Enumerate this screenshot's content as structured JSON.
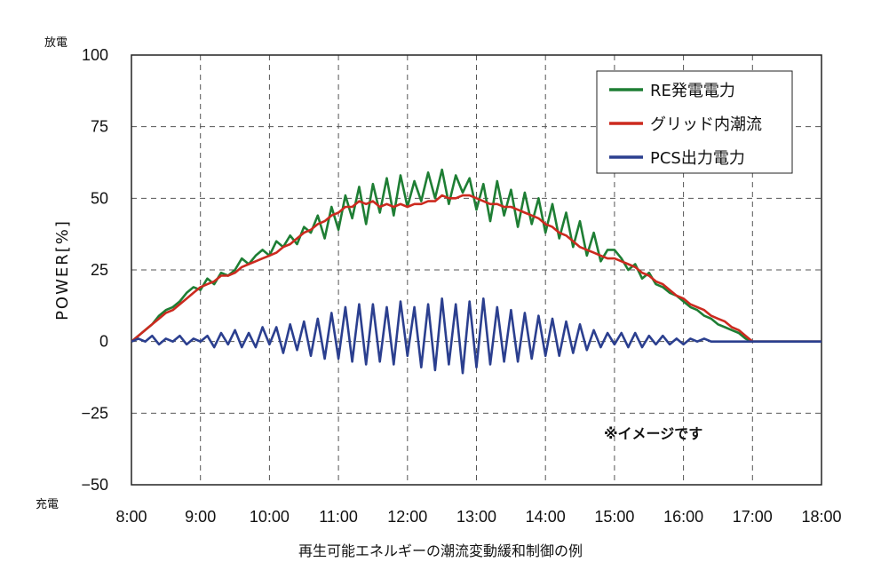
{
  "chart_data": {
    "type": "line",
    "ylabel": "POWER[%]",
    "y_top_label": "放電",
    "y_bottom_label": "充電",
    "annotation": "※イメージです",
    "caption": "再生可能エネルギーの潮流変動緩和制御の例",
    "ylim": [
      -50,
      100
    ],
    "yticks": [
      100,
      75,
      50,
      25,
      0,
      -25,
      -50
    ],
    "ytick_labels": [
      "100",
      "75",
      "50",
      "25",
      "0",
      "−25",
      "−50"
    ],
    "xlim": [
      8,
      18
    ],
    "xticks": [
      "8:00",
      "9:00",
      "10:00",
      "11:00",
      "12:00",
      "13:00",
      "14:00",
      "15:00",
      "16:00",
      "17:00",
      "18:00"
    ],
    "grid": true,
    "legend_position": "top-right",
    "x_hours": [
      8.0,
      8.1,
      8.2,
      8.3,
      8.4,
      8.5,
      8.6,
      8.7,
      8.8,
      8.9,
      9.0,
      9.1,
      9.2,
      9.3,
      9.4,
      9.5,
      9.6,
      9.7,
      9.8,
      9.9,
      10.0,
      10.1,
      10.2,
      10.3,
      10.4,
      10.5,
      10.6,
      10.7,
      10.8,
      10.9,
      11.0,
      11.1,
      11.2,
      11.3,
      11.4,
      11.5,
      11.6,
      11.7,
      11.8,
      11.9,
      12.0,
      12.1,
      12.2,
      12.3,
      12.4,
      12.5,
      12.6,
      12.7,
      12.8,
      12.9,
      13.0,
      13.1,
      13.2,
      13.3,
      13.4,
      13.5,
      13.6,
      13.7,
      13.8,
      13.9,
      14.0,
      14.1,
      14.2,
      14.3,
      14.4,
      14.5,
      14.6,
      14.7,
      14.8,
      14.9,
      15.0,
      15.1,
      15.2,
      15.3,
      15.4,
      15.5,
      15.6,
      15.7,
      15.8,
      15.9,
      16.0,
      16.1,
      16.2,
      16.3,
      16.4,
      16.5,
      16.6,
      16.7,
      16.8,
      16.9,
      17.0,
      17.1,
      17.2,
      17.3,
      17.4,
      17.5,
      17.6,
      17.7,
      17.8,
      17.9,
      18.0
    ],
    "series": [
      {
        "name": "RE発電電力",
        "color": "#1e7e34",
        "values": [
          0,
          2,
          4,
          6,
          9,
          11,
          12,
          14,
          17,
          19,
          18,
          22,
          20,
          24,
          23,
          25,
          29,
          27,
          30,
          32,
          30,
          35,
          33,
          37,
          34,
          40,
          38,
          44,
          36,
          47,
          39,
          51,
          43,
          54,
          41,
          55,
          45,
          57,
          44,
          58,
          47,
          56,
          49,
          59,
          50,
          60,
          48,
          58,
          52,
          57,
          46,
          55,
          42,
          56,
          44,
          53,
          40,
          52,
          41,
          50,
          38,
          48,
          36,
          45,
          33,
          42,
          30,
          38,
          28,
          32,
          32,
          29,
          25,
          27,
          22,
          24,
          20,
          19,
          17,
          16,
          14,
          12,
          11,
          9,
          8,
          6,
          5,
          4,
          3,
          1,
          0,
          0,
          0,
          0,
          0,
          0,
          0,
          0,
          0,
          0,
          0
        ]
      },
      {
        "name": "グリッド内潮流",
        "color": "#cc2a1f",
        "values": [
          0,
          2,
          4,
          6,
          8,
          10,
          11,
          13,
          15,
          17,
          19,
          20,
          21,
          23,
          23,
          24,
          26,
          27,
          28,
          29,
          30,
          31,
          33,
          34,
          36,
          38,
          39,
          41,
          42,
          44,
          45,
          47,
          47,
          49,
          48,
          49,
          47,
          48,
          47,
          48,
          47,
          48,
          48,
          49,
          49,
          51,
          50,
          50,
          51,
          51,
          50,
          49,
          48,
          48,
          47,
          47,
          46,
          45,
          44,
          43,
          41,
          40,
          38,
          37,
          35,
          33,
          32,
          31,
          30,
          29,
          29,
          28,
          27,
          26,
          24,
          23,
          21,
          20,
          18,
          16,
          15,
          13,
          12,
          11,
          9,
          8,
          7,
          5,
          4,
          2,
          0,
          0,
          0,
          0,
          0,
          0,
          0,
          0,
          0,
          0,
          0
        ]
      },
      {
        "name": "PCS出力電力",
        "color": "#2b3f8f",
        "values": [
          0,
          1,
          0,
          2,
          -1,
          1,
          0,
          2,
          -1,
          1,
          0,
          2,
          -2,
          3,
          -1,
          4,
          -2,
          3,
          -2,
          5,
          -1,
          5,
          -4,
          6,
          -3,
          7,
          -5,
          8,
          -6,
          10,
          -6,
          12,
          -7,
          13,
          -8,
          13,
          -7,
          12,
          -8,
          14,
          -5,
          12,
          -9,
          13,
          -10,
          15,
          -8,
          13,
          -11,
          14,
          -9,
          15,
          -8,
          12,
          -7,
          11,
          -7,
          10,
          -6,
          9,
          -5,
          8,
          -5,
          7,
          -4,
          6,
          -3,
          4,
          -2,
          3,
          -1,
          3,
          -2,
          3,
          -2,
          2,
          -1,
          2,
          -1,
          1,
          -1,
          1,
          0,
          1,
          0,
          0,
          0,
          0,
          0,
          0,
          0,
          0,
          0,
          0,
          0,
          0,
          0,
          0,
          0,
          0,
          0
        ]
      }
    ]
  }
}
